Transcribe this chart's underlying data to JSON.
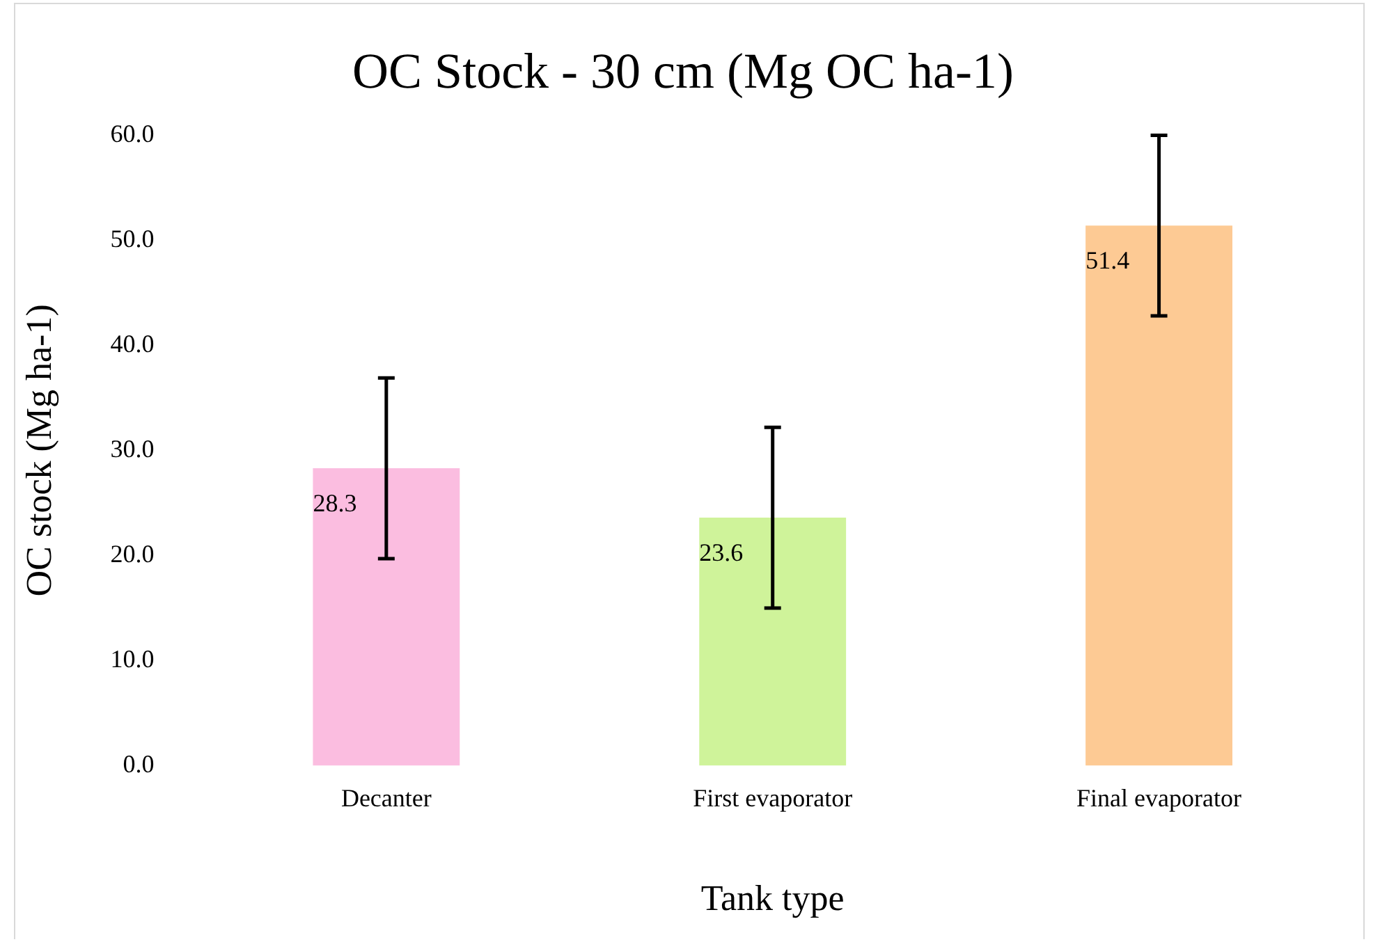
{
  "chart_data": {
    "type": "bar",
    "title": "OC Stock - 30 cm (Mg OC ha-1)",
    "xlabel": "Tank type",
    "ylabel": "OC stock (Mg ha-1)",
    "categories": [
      "Decanter",
      "First evaporator",
      "Final evaporator"
    ],
    "values": [
      28.3,
      23.6,
      51.4
    ],
    "colors": [
      "#fbbde0",
      "#cff39a",
      "#fdca94"
    ],
    "errors": [
      8.6,
      8.6,
      8.6
    ],
    "ylim": [
      0,
      60
    ],
    "yticks": [
      {
        "value": 0,
        "label": "0.0"
      },
      {
        "value": 10,
        "label": "10.0"
      },
      {
        "value": 20,
        "label": "20.0"
      },
      {
        "value": 30,
        "label": "30.0"
      },
      {
        "value": 40,
        "label": "40.0"
      },
      {
        "value": 50,
        "label": "50.0"
      },
      {
        "value": 60,
        "label": "60.0"
      }
    ],
    "grid": false,
    "legend": false,
    "data_labels": true
  }
}
